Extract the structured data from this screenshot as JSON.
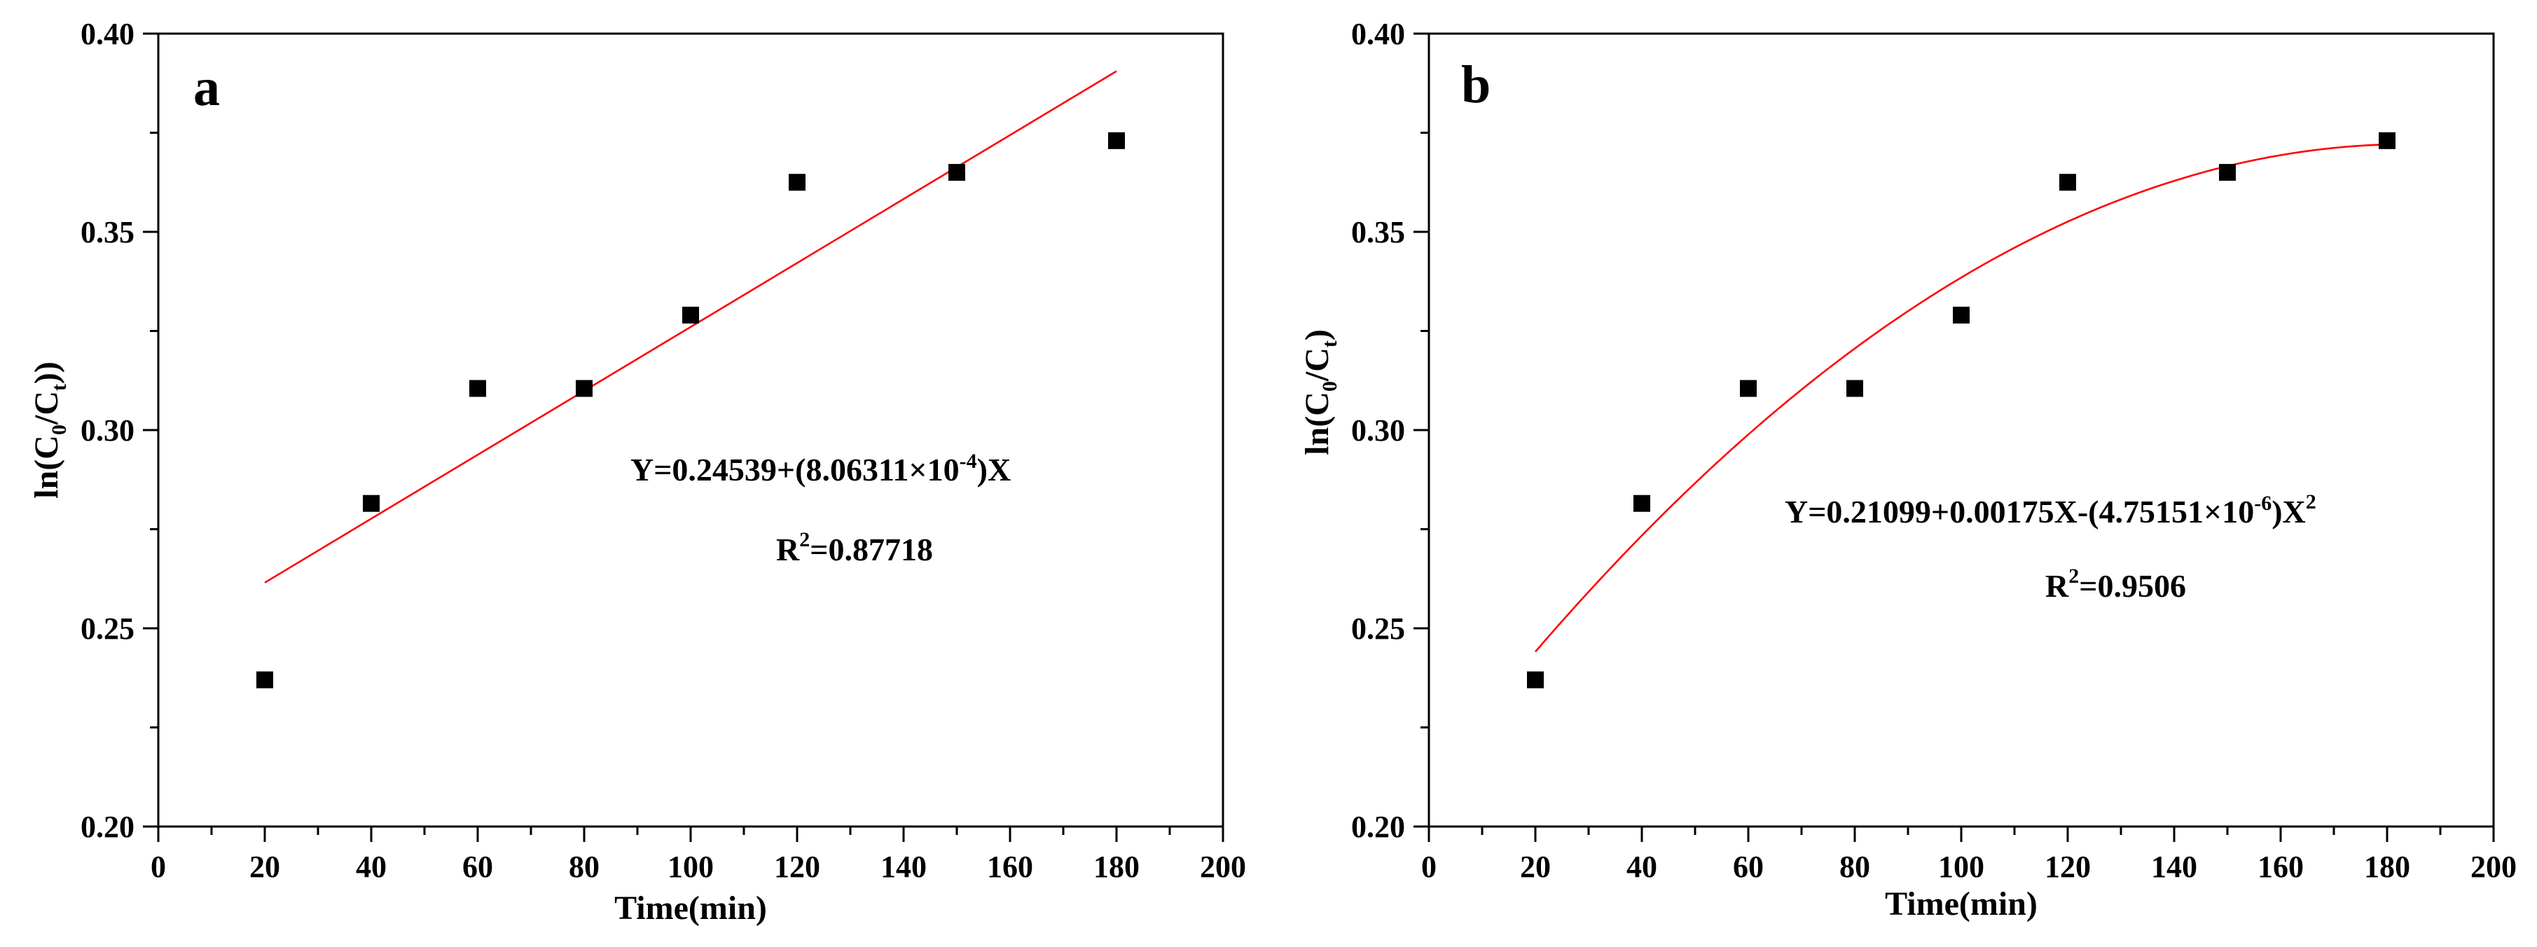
{
  "chart_data": [
    {
      "type": "scatter",
      "panel_label": "a",
      "xlabel": "Time(min)",
      "ylabel": {
        "prefix": "ln(C",
        "sub1": "0",
        "mid": "/C",
        "sub2": "t",
        "suffix": "))"
      },
      "xlim": [
        0,
        200
      ],
      "ylim": [
        0.2,
        0.4
      ],
      "xticks": [
        0,
        20,
        40,
        60,
        80,
        100,
        120,
        140,
        160,
        180,
        200
      ],
      "xtick_labels": [
        "0",
        "20",
        "40",
        "60",
        "80",
        "100",
        "120",
        "140",
        "160",
        "180",
        "200"
      ],
      "yticks": [
        0.2,
        0.25,
        0.3,
        0.35,
        0.4
      ],
      "ytick_labels": [
        "0.20",
        "0.25",
        "0.30",
        "0.35",
        "0.40"
      ],
      "series": [
        {
          "name": "data",
          "marker": "square",
          "x": [
            20,
            40,
            60,
            80,
            100,
            120,
            150,
            180
          ],
          "y": [
            0.237,
            0.2815,
            0.3105,
            0.3105,
            0.329,
            0.3625,
            0.365,
            0.373
          ]
        }
      ],
      "fit": {
        "kind": "linear",
        "color": "#ff0000",
        "coefficients": [
          0.24539,
          0.000806311
        ],
        "x_range": [
          20,
          180
        ]
      },
      "equation": {
        "main": "Y=0.24539+(8.06311×10",
        "exp": "-4",
        "tail": ")X"
      },
      "r2": {
        "prefix": "R",
        "exp": "2",
        "value": "=0.87718"
      },
      "grid": false
    },
    {
      "type": "scatter",
      "panel_label": "b",
      "xlabel": "Time(min)",
      "ylabel": {
        "prefix": "ln(C",
        "sub1": "0",
        "mid": "/C",
        "sub2": "t",
        "suffix": ")"
      },
      "xlim": [
        0,
        200
      ],
      "ylim": [
        0.2,
        0.4
      ],
      "xticks": [
        0,
        20,
        40,
        60,
        80,
        100,
        120,
        140,
        160,
        180,
        200
      ],
      "xtick_labels": [
        "0",
        "20",
        "40",
        "60",
        "80",
        "100",
        "120",
        "140",
        "160",
        "180",
        "200"
      ],
      "yticks": [
        0.2,
        0.25,
        0.3,
        0.35,
        0.4
      ],
      "ytick_labels": [
        "0.20",
        "0.25",
        "0.30",
        "0.35",
        "0.40"
      ],
      "series": [
        {
          "name": "data",
          "marker": "square",
          "x": [
            20,
            40,
            60,
            80,
            100,
            120,
            150,
            180
          ],
          "y": [
            0.237,
            0.2815,
            0.3105,
            0.3105,
            0.329,
            0.3625,
            0.365,
            0.373
          ]
        }
      ],
      "fit": {
        "kind": "quadratic",
        "color": "#ff0000",
        "coefficients": [
          0.21099,
          0.00175,
          -4.75151e-06
        ],
        "x_range": [
          20,
          180
        ]
      },
      "equation": {
        "main": "Y=0.21099+0.00175X-(4.75151×10",
        "exp": "-6",
        "tail": ")X",
        "exp2": "2"
      },
      "r2": {
        "prefix": "R",
        "exp": "2",
        "value": "=0.9506"
      },
      "grid": false
    }
  ]
}
